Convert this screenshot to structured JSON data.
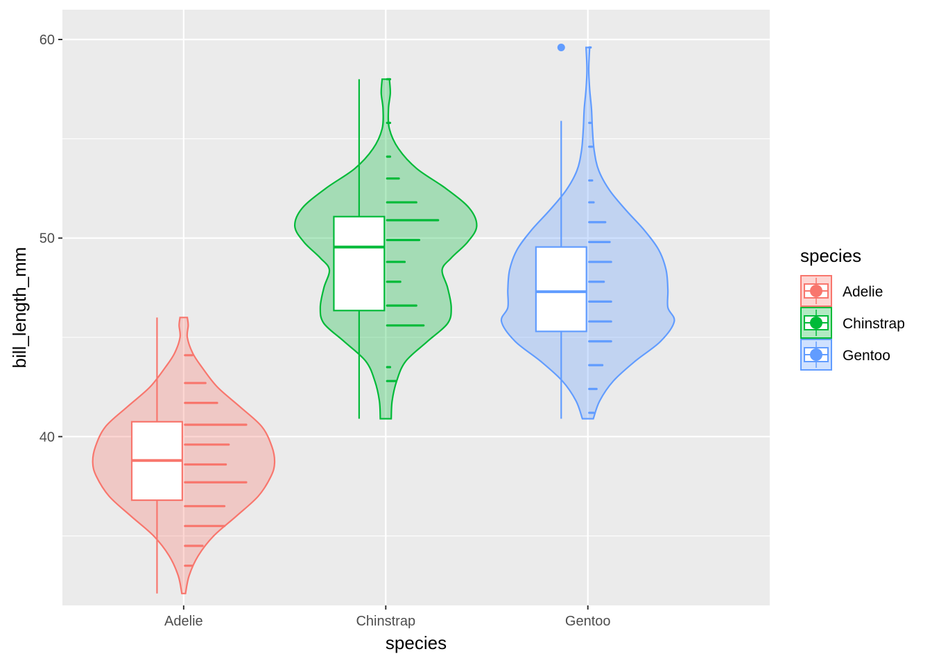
{
  "chart_data": {
    "type": "violin",
    "xlabel": "species",
    "ylabel": "bill_length_mm",
    "ylim": [
      31.5,
      61.5
    ],
    "yticks": [
      40,
      50,
      60
    ],
    "grid": true,
    "legend": {
      "title": "species",
      "position": "right"
    },
    "categories": [
      "Adelie",
      "Chinstrap",
      "Gentoo"
    ],
    "colors": {
      "Adelie": "#F8766D",
      "Chinstrap": "#00BA38",
      "Gentoo": "#619CFF"
    },
    "series": [
      {
        "name": "Adelie",
        "box": {
          "min": 32.1,
          "q1": 36.8,
          "median": 38.8,
          "q3": 40.75,
          "max": 46.0
        },
        "outliers": [],
        "violin_profile": [
          [
            32.1,
            0.02
          ],
          [
            33.0,
            0.06
          ],
          [
            34.0,
            0.16
          ],
          [
            35.0,
            0.33
          ],
          [
            36.0,
            0.58
          ],
          [
            37.0,
            0.82
          ],
          [
            38.0,
            0.96
          ],
          [
            38.7,
            1.0
          ],
          [
            39.5,
            0.97
          ],
          [
            40.5,
            0.86
          ],
          [
            41.5,
            0.62
          ],
          [
            42.5,
            0.37
          ],
          [
            43.5,
            0.2
          ],
          [
            44.2,
            0.1
          ],
          [
            45.0,
            0.04
          ],
          [
            45.6,
            0.05
          ],
          [
            46.0,
            0.04
          ]
        ],
        "dot_bins": [
          [
            33.5,
            0.05
          ],
          [
            34.5,
            0.12
          ],
          [
            35.5,
            0.27
          ],
          [
            36.5,
            0.27
          ],
          [
            37.7,
            0.42
          ],
          [
            38.6,
            0.28
          ],
          [
            39.6,
            0.3
          ],
          [
            40.6,
            0.42
          ],
          [
            41.7,
            0.22
          ],
          [
            42.7,
            0.14
          ],
          [
            44.1,
            0.05
          ]
        ]
      },
      {
        "name": "Chinstrap",
        "box": {
          "min": 40.9,
          "q1": 46.35,
          "median": 49.55,
          "q3": 51.08,
          "max": 58.0
        },
        "outliers": [],
        "violin_profile": [
          [
            40.9,
            0.06
          ],
          [
            41.8,
            0.07
          ],
          [
            42.8,
            0.12
          ],
          [
            43.8,
            0.22
          ],
          [
            44.8,
            0.46
          ],
          [
            45.7,
            0.68
          ],
          [
            46.5,
            0.72
          ],
          [
            47.5,
            0.68
          ],
          [
            48.4,
            0.62
          ],
          [
            49.0,
            0.72
          ],
          [
            49.8,
            0.9
          ],
          [
            50.6,
            1.0
          ],
          [
            51.5,
            0.92
          ],
          [
            52.5,
            0.66
          ],
          [
            53.5,
            0.34
          ],
          [
            54.5,
            0.14
          ],
          [
            55.5,
            0.04
          ],
          [
            56.5,
            0.03
          ],
          [
            57.3,
            0.05
          ],
          [
            58.0,
            0.04
          ]
        ],
        "dot_bins": [
          [
            42.8,
            0.06
          ],
          [
            43.5,
            0.02
          ],
          [
            45.6,
            0.25
          ],
          [
            46.6,
            0.2
          ],
          [
            47.8,
            0.09
          ],
          [
            48.8,
            0.12
          ],
          [
            49.9,
            0.22
          ],
          [
            50.9,
            0.35
          ],
          [
            51.8,
            0.2
          ],
          [
            53.0,
            0.08
          ],
          [
            54.1,
            0.02
          ],
          [
            55.8,
            0.02
          ],
          [
            58.0,
            0.02
          ]
        ]
      },
      {
        "name": "Gentoo",
        "box": {
          "min": 40.9,
          "q1": 45.3,
          "median": 47.3,
          "q3": 49.55,
          "max": 55.9
        },
        "outliers": [
          59.6
        ],
        "violin_profile": [
          [
            40.9,
            0.06
          ],
          [
            41.8,
            0.13
          ],
          [
            42.8,
            0.28
          ],
          [
            43.8,
            0.52
          ],
          [
            44.8,
            0.8
          ],
          [
            45.8,
            0.95
          ],
          [
            46.5,
            0.88
          ],
          [
            47.4,
            0.88
          ],
          [
            48.4,
            0.86
          ],
          [
            49.4,
            0.78
          ],
          [
            50.4,
            0.62
          ],
          [
            51.4,
            0.42
          ],
          [
            52.4,
            0.24
          ],
          [
            53.4,
            0.12
          ],
          [
            54.4,
            0.07
          ],
          [
            55.5,
            0.05
          ],
          [
            56.5,
            0.04
          ],
          [
            57.5,
            0.02
          ],
          [
            58.5,
            0.01
          ],
          [
            59.6,
            0.02
          ]
        ],
        "dot_bins": [
          [
            41.2,
            0.03
          ],
          [
            42.4,
            0.05
          ],
          [
            43.6,
            0.09
          ],
          [
            44.8,
            0.15
          ],
          [
            45.8,
            0.15
          ],
          [
            46.8,
            0.15
          ],
          [
            47.8,
            0.1
          ],
          [
            48.8,
            0.15
          ],
          [
            49.8,
            0.14
          ],
          [
            50.8,
            0.11
          ],
          [
            51.8,
            0.03
          ],
          [
            52.9,
            0.02
          ],
          [
            54.6,
            0.02
          ],
          [
            55.8,
            0.01
          ],
          [
            59.6,
            0.01
          ]
        ]
      }
    ]
  }
}
